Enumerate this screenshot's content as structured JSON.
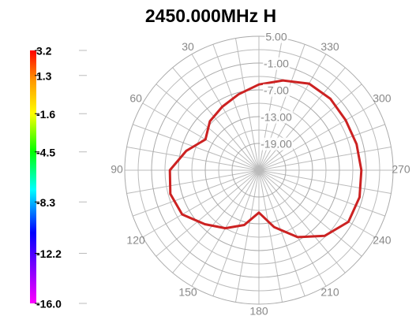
{
  "chart_data": {
    "type": "polar",
    "title": "2450.000MHz  H",
    "rlim": [
      -25,
      5
    ],
    "rticks": [
      {
        "value": 5,
        "label": "5.00"
      },
      {
        "value": -1,
        "label": "-1.00"
      },
      {
        "value": -7,
        "label": "-7.00"
      },
      {
        "value": -13,
        "label": "-13.00"
      },
      {
        "value": -19,
        "label": "-19.00"
      }
    ],
    "angle_ticks": [
      30,
      60,
      90,
      120,
      150,
      180,
      210,
      240,
      270,
      300,
      330
    ],
    "theta": [
      0,
      15,
      30,
      45,
      60,
      75,
      90,
      105,
      120,
      135,
      150,
      165,
      180,
      195,
      210,
      225,
      240,
      255,
      270,
      285,
      300,
      315,
      330,
      345
    ],
    "values": [
      -5.8,
      -7.4,
      -8.6,
      -9.5,
      -11.2,
      -8.2,
      -5.1,
      -4.5,
      -5.2,
      -7.9,
      -10,
      -12.3,
      -15.5,
      -11.8,
      -7.7,
      -4.2,
      -1.9,
      -1.7,
      -2.1,
      -2.4,
      -2.6,
      -2.4,
      -2.6,
      -4.2
    ],
    "color": "#cc2222",
    "colorbar": {
      "lim": [
        -16,
        3.2
      ],
      "ticks": [
        3.2,
        1.3,
        -1.6,
        -4.5,
        -8.3,
        -12.2,
        {
          "value": -16,
          "label": "-16.0"
        }
      ]
    }
  }
}
